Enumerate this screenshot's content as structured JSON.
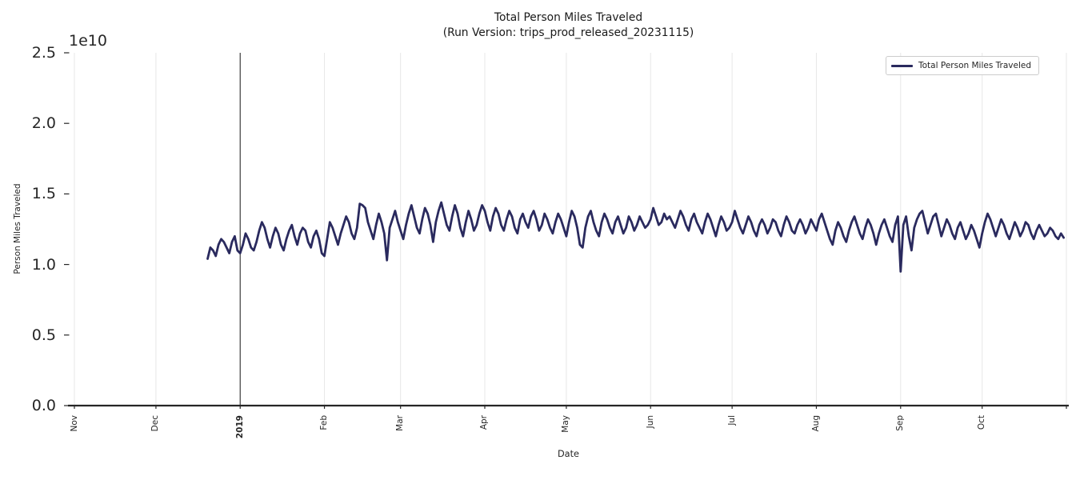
{
  "chart_data": {
    "type": "line",
    "title": "Total Person Miles Traveled",
    "subtitle": "(Run Version: trips_prod_released_20231115)",
    "xlabel": "Date",
    "ylabel": "Person Miles Traveled",
    "y_offset_text": "1e10",
    "y_unit": "1e10",
    "ylim": [
      0,
      2.5
    ],
    "grid": "vertical-only",
    "legend_position": "upper right",
    "axis_color": "#262626",
    "grid_color": "#e7e7e7",
    "year_line_color": "#3f3f3f",
    "year_line_day": 61,
    "x_ticks": [
      {
        "label": "Nov",
        "day": 0,
        "bold": false
      },
      {
        "label": "Dec",
        "day": 30,
        "bold": false
      },
      {
        "label": "2019",
        "day": 61,
        "bold": true
      },
      {
        "label": "Feb",
        "day": 92,
        "bold": false
      },
      {
        "label": "Mar",
        "day": 120,
        "bold": false
      },
      {
        "label": "Apr",
        "day": 151,
        "bold": false
      },
      {
        "label": "May",
        "day": 181,
        "bold": false
      },
      {
        "label": "Jun",
        "day": 212,
        "bold": false
      },
      {
        "label": "Jul",
        "day": 242,
        "bold": false
      },
      {
        "label": "Aug",
        "day": 273,
        "bold": false
      },
      {
        "label": "Sep",
        "day": 304,
        "bold": false
      },
      {
        "label": "Oct",
        "day": 334,
        "bold": false
      },
      {
        "label": "",
        "day": 365,
        "bold": false
      }
    ],
    "y_ticks": [
      {
        "label": "0.0",
        "value": 0.0
      },
      {
        "label": "0.5",
        "value": 0.5
      },
      {
        "label": "1.0",
        "value": 1.0
      },
      {
        "label": "1.5",
        "value": 1.5
      },
      {
        "label": "2.0",
        "value": 2.0
      },
      {
        "label": "2.5",
        "value": 2.5
      }
    ],
    "series": [
      {
        "name": "Total Person Miles Traveled",
        "color": "#2a2a5e",
        "start_day": 49,
        "values": [
          1.04,
          1.12,
          1.1,
          1.06,
          1.14,
          1.18,
          1.16,
          1.12,
          1.08,
          1.16,
          1.2,
          1.1,
          1.08,
          1.14,
          1.22,
          1.18,
          1.12,
          1.1,
          1.16,
          1.24,
          1.3,
          1.26,
          1.18,
          1.12,
          1.2,
          1.26,
          1.22,
          1.14,
          1.1,
          1.18,
          1.24,
          1.28,
          1.2,
          1.14,
          1.22,
          1.26,
          1.24,
          1.16,
          1.12,
          1.2,
          1.24,
          1.18,
          1.08,
          1.06,
          1.18,
          1.3,
          1.26,
          1.2,
          1.14,
          1.22,
          1.28,
          1.34,
          1.3,
          1.22,
          1.18,
          1.26,
          1.43,
          1.42,
          1.4,
          1.3,
          1.24,
          1.18,
          1.28,
          1.36,
          1.3,
          1.22,
          1.03,
          1.26,
          1.32,
          1.38,
          1.3,
          1.24,
          1.18,
          1.28,
          1.36,
          1.42,
          1.34,
          1.26,
          1.22,
          1.32,
          1.4,
          1.36,
          1.28,
          1.16,
          1.3,
          1.38,
          1.44,
          1.36,
          1.28,
          1.24,
          1.34,
          1.42,
          1.36,
          1.26,
          1.2,
          1.3,
          1.38,
          1.32,
          1.24,
          1.28,
          1.36,
          1.42,
          1.38,
          1.3,
          1.24,
          1.34,
          1.4,
          1.36,
          1.28,
          1.24,
          1.32,
          1.38,
          1.34,
          1.26,
          1.22,
          1.32,
          1.36,
          1.3,
          1.26,
          1.34,
          1.38,
          1.32,
          1.24,
          1.28,
          1.36,
          1.32,
          1.26,
          1.22,
          1.3,
          1.36,
          1.32,
          1.26,
          1.2,
          1.3,
          1.38,
          1.34,
          1.26,
          1.14,
          1.12,
          1.26,
          1.34,
          1.38,
          1.3,
          1.24,
          1.2,
          1.3,
          1.36,
          1.32,
          1.26,
          1.22,
          1.3,
          1.34,
          1.28,
          1.22,
          1.26,
          1.34,
          1.3,
          1.24,
          1.28,
          1.34,
          1.3,
          1.26,
          1.28,
          1.32,
          1.4,
          1.34,
          1.28,
          1.3,
          1.36,
          1.32,
          1.34,
          1.3,
          1.26,
          1.32,
          1.38,
          1.34,
          1.28,
          1.24,
          1.32,
          1.36,
          1.3,
          1.26,
          1.22,
          1.3,
          1.36,
          1.32,
          1.26,
          1.2,
          1.28,
          1.34,
          1.3,
          1.24,
          1.26,
          1.3,
          1.38,
          1.32,
          1.26,
          1.22,
          1.28,
          1.34,
          1.3,
          1.24,
          1.2,
          1.28,
          1.32,
          1.28,
          1.22,
          1.26,
          1.32,
          1.3,
          1.24,
          1.2,
          1.28,
          1.34,
          1.3,
          1.24,
          1.22,
          1.28,
          1.32,
          1.28,
          1.22,
          1.26,
          1.32,
          1.28,
          1.24,
          1.32,
          1.36,
          1.3,
          1.24,
          1.18,
          1.14,
          1.24,
          1.3,
          1.26,
          1.2,
          1.16,
          1.24,
          1.3,
          1.34,
          1.28,
          1.22,
          1.18,
          1.26,
          1.32,
          1.28,
          1.22,
          1.14,
          1.22,
          1.28,
          1.32,
          1.26,
          1.2,
          1.16,
          1.28,
          1.34,
          0.95,
          1.28,
          1.34,
          1.2,
          1.1,
          1.26,
          1.32,
          1.36,
          1.38,
          1.3,
          1.22,
          1.28,
          1.34,
          1.36,
          1.28,
          1.2,
          1.26,
          1.32,
          1.28,
          1.22,
          1.18,
          1.26,
          1.3,
          1.24,
          1.18,
          1.22,
          1.28,
          1.24,
          1.18,
          1.12,
          1.22,
          1.3,
          1.36,
          1.32,
          1.26,
          1.2,
          1.26,
          1.32,
          1.28,
          1.22,
          1.18,
          1.24,
          1.3,
          1.26,
          1.2,
          1.24,
          1.3,
          1.28,
          1.22,
          1.18,
          1.24,
          1.28,
          1.24,
          1.2,
          1.22,
          1.26,
          1.24,
          1.2,
          1.18,
          1.22,
          1.19
        ]
      }
    ]
  }
}
